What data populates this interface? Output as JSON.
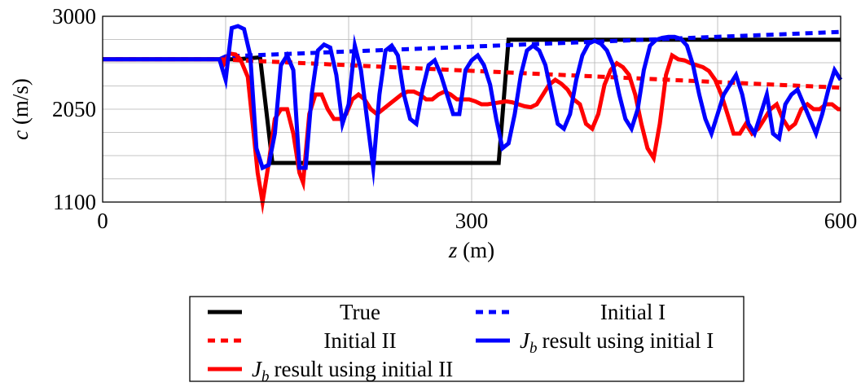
{
  "chart_data": {
    "type": "line",
    "xlabel_var": "z",
    "xlabel_unit": " (m)",
    "ylabel_var": "c",
    "ylabel_unit": " (m/s)",
    "xlim": [
      0,
      600
    ],
    "ylim": [
      1100,
      3000
    ],
    "xticks": [
      0,
      300,
      600
    ],
    "xtick_labels": [
      "0",
      "300",
      "600"
    ],
    "yticks": [
      1100,
      2050,
      3000
    ],
    "ytick_labels": [
      "1100",
      "2050",
      "3000"
    ],
    "grid": true,
    "legend_placement": "below",
    "series": [
      {
        "name": "True",
        "color": "#000000",
        "dash": "solid",
        "x": [
          0,
          95,
          110,
          128,
          138,
          322,
          330,
          600
        ],
        "y": [
          2560,
          2560,
          2560,
          2580,
          1500,
          1500,
          2760,
          2760
        ]
      },
      {
        "name": "Initial I",
        "color": "#0000ff",
        "dash": "dashed",
        "x": [
          0,
          95,
          100,
          600
        ],
        "y": [
          2560,
          2560,
          2590,
          2840
        ]
      },
      {
        "name": "Initial II",
        "color": "#ff0000",
        "dash": "dashed",
        "x": [
          0,
          95,
          600
        ],
        "y": [
          2560,
          2560,
          2270
        ]
      },
      {
        "name": "result using initial I",
        "name_var": "J",
        "name_sub": "b",
        "color": "#0000ff",
        "dash": "solid",
        "x": [
          0,
          95,
          100,
          105,
          110,
          115,
          120,
          125,
          130,
          135,
          140,
          145,
          150,
          155,
          160,
          165,
          170,
          175,
          180,
          185,
          190,
          195,
          200,
          205,
          210,
          215,
          220,
          225,
          230,
          235,
          240,
          245,
          250,
          255,
          260,
          265,
          270,
          275,
          280,
          285,
          290,
          295,
          300,
          305,
          310,
          315,
          320,
          325,
          330,
          335,
          340,
          345,
          350,
          355,
          360,
          365,
          370,
          375,
          380,
          385,
          390,
          395,
          400,
          405,
          410,
          415,
          420,
          425,
          430,
          435,
          440,
          445,
          450,
          455,
          460,
          465,
          470,
          475,
          480,
          485,
          490,
          495,
          500,
          505,
          510,
          515,
          520,
          525,
          530,
          535,
          540,
          545,
          550,
          555,
          560,
          565,
          570,
          575,
          580,
          585,
          590,
          595,
          600
        ],
        "y": [
          2560,
          2560,
          2350,
          2880,
          2900,
          2870,
          2600,
          1650,
          1450,
          1480,
          1800,
          2500,
          2600,
          2450,
          1450,
          1450,
          2200,
          2650,
          2710,
          2680,
          2400,
          1900,
          2100,
          2700,
          2450,
          1950,
          1450,
          2200,
          2650,
          2700,
          2600,
          2200,
          1950,
          1900,
          2250,
          2500,
          2550,
          2400,
          2200,
          2000,
          2000,
          2450,
          2550,
          2600,
          2500,
          2300,
          1950,
          1650,
          1700,
          2000,
          2400,
          2650,
          2700,
          2650,
          2500,
          2200,
          1900,
          1850,
          2000,
          2350,
          2600,
          2720,
          2750,
          2720,
          2650,
          2500,
          2200,
          1950,
          1850,
          2050,
          2450,
          2700,
          2760,
          2780,
          2790,
          2790,
          2770,
          2700,
          2500,
          2200,
          1950,
          1800,
          2000,
          2200,
          2300,
          2400,
          2200,
          1900,
          1800,
          2000,
          2200,
          1800,
          1750,
          2100,
          2200,
          2250,
          2100,
          1950,
          1800,
          2000,
          2250,
          2450,
          2350
        ]
      },
      {
        "name": "result using initial II",
        "name_var": "J",
        "name_sub": "b",
        "color": "#ff0000",
        "dash": "solid",
        "x": [
          0,
          95,
          98,
          103,
          108,
          112,
          118,
          122,
          126,
          130,
          135,
          140,
          145,
          150,
          155,
          160,
          163,
          168,
          173,
          178,
          183,
          188,
          193,
          198,
          203,
          208,
          213,
          218,
          223,
          228,
          233,
          238,
          243,
          248,
          253,
          258,
          263,
          268,
          273,
          278,
          283,
          288,
          293,
          298,
          303,
          308,
          313,
          318,
          323,
          328,
          333,
          338,
          343,
          348,
          353,
          358,
          363,
          368,
          373,
          378,
          383,
          388,
          393,
          398,
          403,
          408,
          413,
          418,
          423,
          428,
          433,
          438,
          443,
          448,
          453,
          458,
          463,
          468,
          473,
          478,
          483,
          488,
          493,
          498,
          503,
          508,
          513,
          518,
          523,
          528,
          533,
          538,
          543,
          548,
          553,
          558,
          563,
          568,
          573,
          578,
          583,
          588,
          593,
          598,
          600
        ],
        "y": [
          2560,
          2560,
          2500,
          2620,
          2610,
          2560,
          2380,
          1900,
          1400,
          1100,
          1500,
          1950,
          2050,
          2050,
          1800,
          1400,
          1300,
          2000,
          2200,
          2200,
          2050,
          1950,
          1950,
          2000,
          2150,
          2200,
          2150,
          2050,
          2000,
          2050,
          2100,
          2150,
          2200,
          2230,
          2230,
          2200,
          2150,
          2150,
          2200,
          2230,
          2200,
          2150,
          2150,
          2150,
          2130,
          2100,
          2100,
          2110,
          2120,
          2130,
          2120,
          2100,
          2080,
          2070,
          2100,
          2200,
          2300,
          2350,
          2310,
          2250,
          2150,
          2100,
          1900,
          1850,
          2000,
          2300,
          2450,
          2520,
          2480,
          2400,
          2200,
          1900,
          1650,
          1550,
          1900,
          2400,
          2600,
          2560,
          2550,
          2520,
          2500,
          2480,
          2440,
          2350,
          2200,
          2000,
          1800,
          1800,
          1900,
          1800,
          1850,
          1950,
          2050,
          2100,
          1950,
          1850,
          1900,
          2050,
          2100,
          2050,
          2050,
          2100,
          2100,
          2050,
          2050
        ]
      }
    ]
  }
}
